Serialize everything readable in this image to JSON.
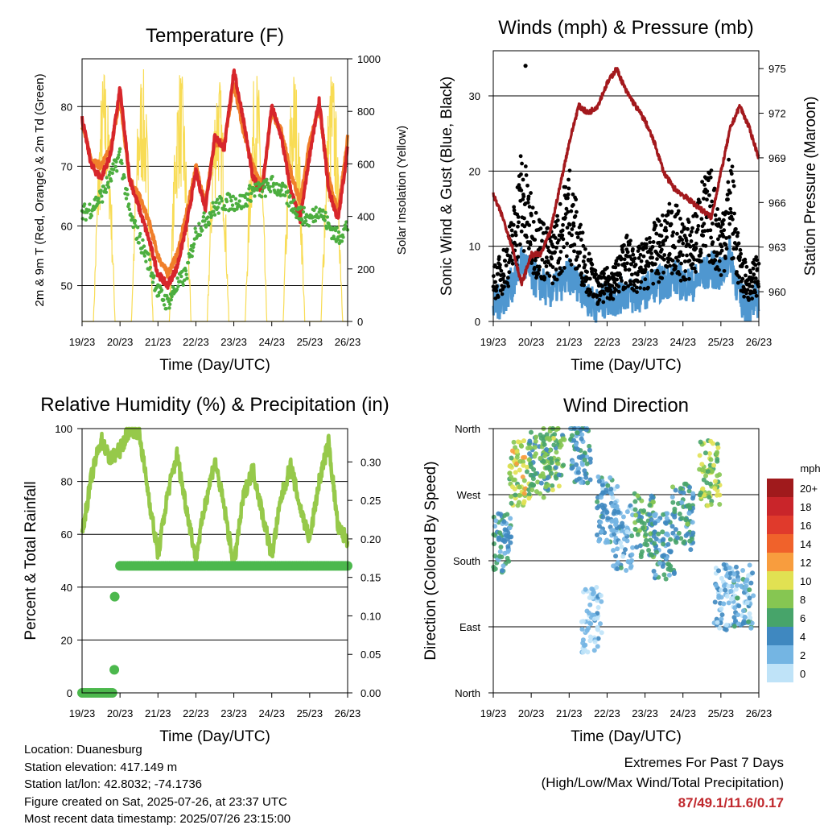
{
  "xticks": [
    "19/23",
    "20/23",
    "21/23",
    "22/23",
    "23/23",
    "24/23",
    "25/23",
    "26/23"
  ],
  "info": {
    "location": "Location: Duanesburg",
    "elevation": "Station elevation: 417.149 m",
    "latlon": "Station lat/lon: 42.8032; -74.1736",
    "created": "Figure created on Sat, 2025-07-26, at 23:37 UTC",
    "recent": "Most recent data timestamp: 2025/07/26 23:15:00"
  },
  "extremes": {
    "title": "Extremes For Past 7 Days",
    "subtitle": "(High/Low/Max Wind/Total Precipitation)",
    "values": "87/49.1/11.6/0.17"
  },
  "colors": {
    "temp2m": "#d7262b",
    "temp9m": "#f07f2a",
    "dewpoint": "#4cae3f",
    "solar": "#f8dc55",
    "wind": "#4f97d0",
    "gust": "#000000",
    "pressure": "#a3191d",
    "rh": "#96c94a",
    "precip": "#4cb84d"
  },
  "chart_data": [
    {
      "type": "line",
      "title": "Temperature (F)",
      "xlabel": "Time (Day/UTC)",
      "ylabel": "2m & 9m T (Red, Orange) & 2m Td (Green)",
      "ylabel2": "Solar Insolation (Yellow)",
      "x": [
        0,
        0.25,
        0.5,
        0.75,
        1,
        1.25,
        1.5,
        1.75,
        2,
        2.25,
        2.5,
        2.75,
        3,
        3.25,
        3.5,
        3.75,
        4,
        4.25,
        4.5,
        4.75,
        5,
        5.25,
        5.5,
        5.75,
        6,
        6.25,
        6.5,
        6.75,
        7
      ],
      "xlim": [
        0,
        7
      ],
      "ylim": [
        44,
        88
      ],
      "yticks": [
        50,
        60,
        70,
        80
      ],
      "y2lim": [
        0,
        1000
      ],
      "y2ticks": [
        0,
        200,
        400,
        600,
        800,
        1000
      ],
      "series": [
        {
          "key": "temp9m",
          "values": [
            77,
            71,
            70,
            73,
            81,
            68,
            65,
            61,
            55,
            52,
            55,
            62,
            70,
            64,
            74,
            74,
            84,
            76,
            70,
            67,
            79,
            76,
            69,
            64,
            74,
            80,
            68,
            62,
            75
          ]
        },
        {
          "key": "temp2m",
          "values": [
            78,
            70,
            68,
            72,
            83,
            68,
            63,
            58,
            52,
            50,
            53,
            60,
            69,
            63,
            75,
            73,
            86,
            78,
            68,
            66,
            80,
            75,
            66,
            61,
            72,
            81,
            66,
            61,
            73
          ]
        },
        {
          "key": "dewpoint",
          "values": [
            62,
            63,
            65,
            68,
            72,
            62,
            58,
            54,
            49,
            47,
            50,
            52,
            59,
            61,
            63,
            64,
            64,
            64,
            66,
            66,
            67,
            66,
            64,
            62,
            61,
            63,
            60,
            58,
            60
          ]
        },
        {
          "key": "solar",
          "axis": "y2",
          "values": [
            0,
            200,
            920,
            300,
            0,
            150,
            950,
            400,
            0,
            120,
            960,
            300,
            0,
            180,
            950,
            350,
            0,
            150,
            940,
            350,
            0,
            160,
            930,
            330,
            0,
            170,
            920,
            320,
            0
          ]
        }
      ]
    },
    {
      "type": "scatter",
      "title": "Winds (mph) & Pressure (mb)",
      "xlabel": "Time (Day/UTC)",
      "ylabel": "Sonic Wind & Gust (Blue, Black)",
      "ylabel2": "Station Pressure (Maroon)",
      "xlim": [
        0,
        7
      ],
      "ylim": [
        0,
        36
      ],
      "yticks": [
        0,
        10,
        20,
        30
      ],
      "y2lim": [
        958,
        976.2
      ],
      "y2ticks": [
        960,
        963,
        966,
        969,
        972,
        975
      ],
      "x": [
        0,
        0.25,
        0.5,
        0.75,
        1,
        1.25,
        1.5,
        1.75,
        2,
        2.25,
        2.5,
        2.75,
        3,
        3.25,
        3.5,
        3.75,
        4,
        4.25,
        4.5,
        4.75,
        5,
        5.25,
        5.5,
        5.75,
        6,
        6.25,
        6.5,
        6.75,
        7
      ],
      "series": [
        {
          "key": "gust",
          "values": [
            6,
            8,
            12,
            20,
            14,
            12,
            10,
            13,
            18,
            12,
            8,
            5,
            6,
            7,
            10,
            8,
            9,
            11,
            12,
            14,
            11,
            12,
            16,
            17,
            12,
            20,
            8,
            6,
            8
          ]
        },
        {
          "key": "wind",
          "values": [
            2,
            3,
            5,
            8,
            6,
            5,
            4,
            5,
            6,
            5,
            3,
            2,
            3,
            3,
            4,
            3,
            4,
            5,
            5,
            6,
            5,
            5,
            6,
            7,
            6,
            9,
            3,
            2,
            3
          ]
        },
        {
          "key": "pressure",
          "axis": "y2",
          "values": [
            966.5,
            965,
            963,
            960.5,
            962.5,
            962.5,
            964,
            967,
            970,
            972.5,
            972,
            972.5,
            974,
            975,
            973.5,
            972.5,
            971.5,
            970,
            968,
            967,
            966.5,
            966,
            965.5,
            965,
            968,
            971,
            972.5,
            971,
            969
          ]
        }
      ],
      "outlier": {
        "x": 0.85,
        "y": 34
      }
    },
    {
      "type": "line",
      "title": "Relative Humidity (%) & Precipitation (in)",
      "xlabel": "Time (Day/UTC)",
      "ylabel": "Percent & Total Rainfall",
      "xlim": [
        0,
        7
      ],
      "ylim": [
        0,
        100
      ],
      "yticks": [
        0,
        20,
        40,
        60,
        80,
        100
      ],
      "y2lim": [
        0,
        0.3433
      ],
      "y2ticks": [
        "0.00",
        "0.05",
        "0.10",
        "0.15",
        "0.20",
        "0.25",
        "0.30"
      ],
      "x": [
        0,
        0.25,
        0.5,
        0.75,
        1,
        1.25,
        1.5,
        1.75,
        2,
        2.25,
        2.5,
        2.75,
        3,
        3.25,
        3.5,
        3.75,
        4,
        4.25,
        4.5,
        4.75,
        5,
        5.25,
        5.5,
        5.75,
        6,
        6.25,
        6.5,
        6.75,
        7
      ],
      "series": [
        {
          "key": "rh",
          "values": [
            60,
            82,
            96,
            88,
            92,
            100,
            99,
            75,
            52,
            75,
            90,
            70,
            51,
            72,
            88,
            70,
            48,
            74,
            85,
            68,
            52,
            74,
            86,
            70,
            58,
            80,
            95,
            62,
            58
          ]
        },
        {
          "key": "precip",
          "axis": "y2",
          "x": [
            0,
            0.1,
            0.2,
            0.3,
            0.4,
            0.5,
            0.6,
            0.7,
            0.8,
            0.85,
            0.9,
            1,
            2,
            3,
            4,
            5,
            6,
            7
          ],
          "values": [
            0,
            0,
            0,
            0,
            0,
            0,
            0,
            0,
            0,
            0.03,
            0.125,
            0.165,
            0.165,
            0.165,
            0.165,
            0.165,
            0.165,
            0.165
          ]
        }
      ]
    },
    {
      "type": "scatter",
      "title": "Wind Direction",
      "xlabel": "Time (Day/UTC)",
      "ylabel": "Direction (Colored By Speed)",
      "xlim": [
        0,
        7
      ],
      "yticks": [
        "North",
        "West",
        "South",
        "East",
        "North"
      ],
      "legend": {
        "title": "mph",
        "labels": [
          "20+",
          "18",
          "16",
          "14",
          "12",
          "10",
          "8",
          "6",
          "4",
          "2",
          "0"
        ],
        "colors": [
          "#a01a1c",
          "#c9252a",
          "#e03a2c",
          "#f0622b",
          "#f89d3e",
          "#e1e152",
          "#86c652",
          "#47a46a",
          "#3f88c0",
          "#74b5e3",
          "#bfe3f8"
        ]
      },
      "clusters": [
        {
          "x": 0.2,
          "dir": 200,
          "speed": 4
        },
        {
          "x": 0.7,
          "dir": 300,
          "speed": 9
        },
        {
          "x": 1.2,
          "dir": 310,
          "speed": 6
        },
        {
          "x": 1.6,
          "dir": 320,
          "speed": 7
        },
        {
          "x": 2.3,
          "dir": 330,
          "speed": 4
        },
        {
          "x": 2.6,
          "dir": 100,
          "speed": 1
        },
        {
          "x": 3.0,
          "dir": 250,
          "speed": 3
        },
        {
          "x": 3.4,
          "dir": 210,
          "speed": 3
        },
        {
          "x": 4.0,
          "dir": 230,
          "speed": 6
        },
        {
          "x": 4.5,
          "dir": 200,
          "speed": 4
        },
        {
          "x": 5.0,
          "dir": 240,
          "speed": 5
        },
        {
          "x": 5.7,
          "dir": 300,
          "speed": 8
        },
        {
          "x": 6.1,
          "dir": 130,
          "speed": 2
        },
        {
          "x": 6.6,
          "dir": 130,
          "speed": 3
        }
      ]
    }
  ]
}
